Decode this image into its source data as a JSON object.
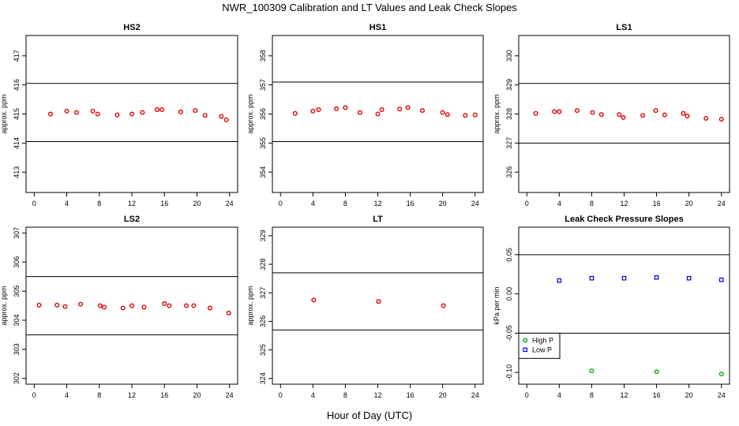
{
  "title": "NWR_100309  Calibration and LT Values and Leak Check Slopes",
  "x_axis_title": "Hour of Day (UTC)",
  "colors": {
    "cal_points": "#dd0000",
    "high_p": "#00aa00",
    "low_p": "#0000cc",
    "frame": "#000000"
  },
  "chart_data": [
    {
      "type": "scatter",
      "title": "HS2",
      "ylabel": "approx. ppm",
      "xlim": [
        -1,
        25
      ],
      "ylim": [
        412.3,
        417.7
      ],
      "xticks": [
        0,
        4,
        8,
        12,
        16,
        20,
        24
      ],
      "yticks": [
        413,
        414,
        415,
        416,
        417
      ],
      "hlines": [
        416.05,
        414.05
      ],
      "series": [
        {
          "x": [
            2.0,
            4.0,
            5.2,
            7.2,
            7.8,
            10.2,
            12.0,
            13.3,
            15.1,
            15.7,
            18.0,
            19.8,
            21.0,
            23.0,
            23.6
          ],
          "y": [
            415.0,
            415.1,
            415.05,
            415.1,
            415.0,
            414.97,
            415.0,
            415.05,
            415.15,
            415.15,
            415.07,
            415.12,
            414.95,
            414.92,
            414.8
          ]
        }
      ]
    },
    {
      "type": "scatter",
      "title": "HS1",
      "ylabel": "approx. ppm",
      "xlim": [
        -1,
        25
      ],
      "ylim": [
        353.3,
        358.7
      ],
      "xticks": [
        0,
        4,
        8,
        12,
        16,
        20,
        24
      ],
      "yticks": [
        354,
        355,
        356,
        357,
        358
      ],
      "hlines": [
        357.1,
        355.05
      ],
      "series": [
        {
          "x": [
            1.8,
            4.0,
            4.7,
            6.9,
            8.0,
            9.8,
            12.0,
            12.5,
            14.7,
            15.7,
            17.5,
            20.0,
            20.6,
            22.8,
            24.0
          ],
          "y": [
            356.02,
            356.1,
            356.15,
            356.18,
            356.22,
            356.05,
            356.0,
            356.15,
            356.17,
            356.22,
            356.12,
            356.05,
            355.98,
            355.95,
            355.97
          ]
        }
      ]
    },
    {
      "type": "scatter",
      "title": "LS1",
      "ylabel": "approx. ppm",
      "xlim": [
        -1,
        25
      ],
      "ylim": [
        325.3,
        330.7
      ],
      "xticks": [
        0,
        4,
        8,
        12,
        16,
        20,
        24
      ],
      "yticks": [
        326,
        327,
        328,
        329,
        330
      ],
      "hlines": [
        329.05,
        327.0
      ],
      "series": [
        {
          "x": [
            1.1,
            3.4,
            4.0,
            6.2,
            8.1,
            9.2,
            11.4,
            11.9,
            14.3,
            15.9,
            17.0,
            19.3,
            19.8,
            22.1,
            24.0
          ],
          "y": [
            328.02,
            328.08,
            328.08,
            328.12,
            328.05,
            327.98,
            327.98,
            327.88,
            327.95,
            328.12,
            327.97,
            328.02,
            327.93,
            327.85,
            327.82
          ]
        }
      ]
    },
    {
      "type": "scatter",
      "title": "LS2",
      "ylabel": "approx. ppm",
      "xlim": [
        -1,
        25
      ],
      "ylim": [
        301.8,
        307.2
      ],
      "xticks": [
        0,
        4,
        8,
        12,
        16,
        20,
        24
      ],
      "yticks": [
        302,
        303,
        304,
        305,
        306,
        307
      ],
      "hlines": [
        305.5,
        303.5
      ],
      "series": [
        {
          "x": [
            0.6,
            2.8,
            3.8,
            5.7,
            8.1,
            8.6,
            10.9,
            12.0,
            13.5,
            16.0,
            16.6,
            18.7,
            19.6,
            21.6,
            23.9
          ],
          "y": [
            304.52,
            304.52,
            304.47,
            304.55,
            304.5,
            304.45,
            304.42,
            304.5,
            304.45,
            304.57,
            304.5,
            304.5,
            304.5,
            304.42,
            304.25
          ]
        }
      ]
    },
    {
      "type": "scatter",
      "title": "LT",
      "ylabel": "approx. ppm",
      "xlim": [
        -1,
        25
      ],
      "ylim": [
        323.8,
        329.3
      ],
      "xticks": [
        0,
        4,
        8,
        12,
        16,
        20,
        24
      ],
      "yticks": [
        324,
        325,
        326,
        327,
        328,
        329
      ],
      "hlines": [
        327.7,
        325.7
      ],
      "series": [
        {
          "x": [
            4.1,
            12.1,
            20.1
          ],
          "y": [
            326.75,
            326.7,
            326.55
          ]
        }
      ]
    },
    {
      "type": "scatter",
      "title": "Leak Check Pressure Slopes",
      "ylabel": "kPa per min",
      "xlim": [
        -1,
        25
      ],
      "ylim": [
        -0.115,
        0.085
      ],
      "xticks": [
        0,
        4,
        8,
        12,
        16,
        20,
        24
      ],
      "yticks": [
        -0.1,
        -0.05,
        0.0,
        0.05
      ],
      "ytick_labels": [
        "-0.10",
        "-0.05",
        "0.00",
        "0.05"
      ],
      "hlines": [
        0.05,
        -0.05
      ],
      "legend": "bottom-left",
      "series": [
        {
          "name": "High P",
          "marker": "circle",
          "color": "#00aa00",
          "x": [
            8,
            16,
            24
          ],
          "y": [
            -0.098,
            -0.099,
            -0.102
          ]
        },
        {
          "name": "Low P",
          "marker": "square",
          "color": "#0000cc",
          "x": [
            4,
            8,
            12,
            16,
            20,
            24
          ],
          "y": [
            0.017,
            0.02,
            0.02,
            0.021,
            0.02,
            0.018
          ]
        }
      ]
    }
  ]
}
